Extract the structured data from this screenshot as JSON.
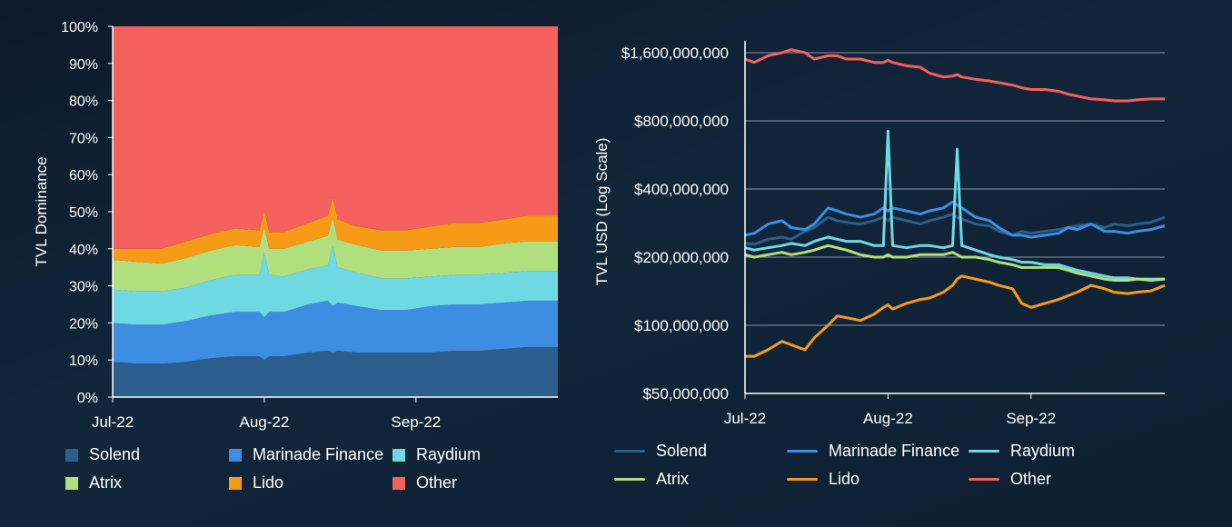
{
  "colors": {
    "Solend": "#2b5e8d",
    "Marinade Finance": "#3d8ee3",
    "Raydium": "#6fd9e3",
    "Atrix": "#b2df7e",
    "Lido": "#f79a16",
    "Other": "#f3605d"
  },
  "chart_data": [
    {
      "type": "area",
      "stacked": true,
      "percent": true,
      "ylabel": "TVL Dominance",
      "xlabel": "",
      "x_ticks": [
        "Jul-22",
        "Aug-22",
        "Sep-22"
      ],
      "x_tick_days": [
        0,
        31,
        62
      ],
      "x_range_days": [
        0,
        91
      ],
      "ylim": [
        0,
        100
      ],
      "y_ticks": [
        "0%",
        "10%",
        "20%",
        "30%",
        "40%",
        "50%",
        "60%",
        "70%",
        "80%",
        "90%",
        "100%"
      ],
      "grid": false,
      "legend_position": "bottom",
      "x_days": [
        0,
        5,
        10,
        15,
        20,
        25,
        30,
        31,
        32,
        35,
        40,
        44,
        45,
        46,
        50,
        55,
        60,
        65,
        70,
        75,
        80,
        85,
        90,
        91
      ],
      "series": [
        {
          "name": "Solend",
          "values": [
            9.5,
            9,
            9,
            9.5,
            10.5,
            11,
            11,
            10,
            11,
            11,
            12,
            12.5,
            12,
            12.5,
            12,
            12,
            12,
            12,
            12.5,
            12.5,
            13,
            13.5,
            13.5,
            13.5
          ]
        },
        {
          "name": "Marinade Finance",
          "values": [
            10.5,
            10.5,
            10.5,
            11,
            11.5,
            12,
            12,
            11.5,
            12,
            12,
            13,
            13.5,
            12.5,
            13,
            12.5,
            11.5,
            11.5,
            12.5,
            12.5,
            12.5,
            12.5,
            12.5,
            12.5,
            12.5
          ]
        },
        {
          "name": "Raydium",
          "values": [
            9,
            9,
            9,
            9,
            9.5,
            10,
            10,
            17.5,
            10,
            9.5,
            9.5,
            9.5,
            16.5,
            9.5,
            9,
            8.5,
            8.5,
            8,
            8,
            8,
            8,
            8,
            8,
            8
          ]
        },
        {
          "name": "Atrix",
          "values": [
            8,
            8,
            7.5,
            8,
            8,
            8,
            7.5,
            7,
            7,
            7.5,
            7.5,
            8,
            7.5,
            7.5,
            7.5,
            7.5,
            7.5,
            7.5,
            7.5,
            7.5,
            8,
            8,
            8,
            8
          ]
        },
        {
          "name": "Lido",
          "values": [
            3,
            3.5,
            4,
            4.5,
            4.5,
            4.5,
            4.5,
            4.5,
            4.5,
            4.5,
            5,
            5.5,
            5.5,
            5.5,
            5,
            5.5,
            5.5,
            6,
            6.5,
            6.5,
            6.5,
            7,
            7,
            7
          ]
        },
        {
          "name": "Other",
          "values": [
            60,
            60,
            60,
            58,
            56,
            54.5,
            55,
            49.5,
            55.5,
            55.5,
            53,
            51,
            46,
            52,
            54,
            55,
            55,
            54,
            53,
            53,
            52,
            51,
            51,
            51
          ]
        }
      ]
    },
    {
      "type": "line",
      "ylabel": "TVL USD (Log Scale)",
      "xlabel": "",
      "y_scale": "log",
      "ylim": [
        50000000,
        1800000000
      ],
      "y_ticks": [
        50000000,
        100000000,
        200000000,
        400000000,
        800000000,
        1600000000
      ],
      "y_tick_labels": [
        "$50,000,000",
        "$100,000,000",
        "$200,000,000",
        "$400,000,000",
        "$800,000,000",
        "$1,600,000,000"
      ],
      "x_ticks": [
        "Jul-22",
        "Aug-22",
        "Sep-22"
      ],
      "x_tick_days": [
        0,
        31,
        62
      ],
      "x_range_days": [
        0,
        91
      ],
      "grid": true,
      "legend_position": "bottom",
      "x_days": [
        0,
        2,
        5,
        8,
        10,
        13,
        15,
        18,
        20,
        22,
        25,
        28,
        30,
        31,
        32,
        35,
        38,
        40,
        43,
        45,
        46,
        47,
        50,
        53,
        55,
        58,
        60,
        62,
        65,
        68,
        70,
        72,
        75,
        78,
        80,
        83,
        85,
        88,
        91
      ],
      "series": [
        {
          "name": "Solend",
          "values": [
            230,
            228,
            240,
            245,
            240,
            260,
            270,
            300,
            290,
            285,
            280,
            290,
            300,
            290,
            300,
            290,
            280,
            290,
            300,
            310,
            300,
            295,
            280,
            275,
            260,
            250,
            260,
            255,
            260,
            265,
            270,
            275,
            280,
            270,
            280,
            275,
            280,
            285,
            300
          ]
        },
        {
          "name": "Marinade Finance",
          "values": [
            250,
            255,
            280,
            290,
            270,
            265,
            280,
            330,
            320,
            310,
            300,
            310,
            330,
            320,
            330,
            320,
            310,
            320,
            330,
            350,
            340,
            330,
            300,
            290,
            270,
            250,
            250,
            245,
            250,
            255,
            270,
            265,
            280,
            260,
            260,
            255,
            260,
            265,
            275
          ]
        },
        {
          "name": "Raydium",
          "values": [
            220,
            215,
            220,
            225,
            230,
            225,
            235,
            245,
            240,
            235,
            235,
            225,
            225,
            720,
            225,
            220,
            225,
            225,
            220,
            225,
            600,
            225,
            215,
            205,
            200,
            195,
            190,
            190,
            185,
            185,
            180,
            175,
            170,
            165,
            162,
            162,
            160,
            160,
            160
          ]
        },
        {
          "name": "Atrix",
          "values": [
            205,
            200,
            205,
            210,
            205,
            210,
            215,
            225,
            220,
            215,
            205,
            200,
            200,
            205,
            200,
            200,
            205,
            205,
            205,
            210,
            205,
            200,
            200,
            195,
            190,
            185,
            180,
            180,
            180,
            180,
            175,
            170,
            165,
            160,
            158,
            158,
            160,
            158,
            160
          ]
        },
        {
          "name": "Lido",
          "values": [
            73,
            73,
            78,
            85,
            82,
            78,
            88,
            100,
            110,
            108,
            105,
            112,
            120,
            123,
            118,
            125,
            130,
            132,
            140,
            150,
            160,
            165,
            160,
            155,
            150,
            145,
            125,
            120,
            125,
            130,
            135,
            140,
            150,
            145,
            140,
            138,
            140,
            142,
            150
          ]
        },
        {
          "name": "Other",
          "values": [
            1500,
            1450,
            1550,
            1600,
            1650,
            1600,
            1500,
            1550,
            1550,
            1500,
            1500,
            1450,
            1450,
            1480,
            1450,
            1400,
            1380,
            1300,
            1250,
            1260,
            1280,
            1250,
            1220,
            1200,
            1180,
            1150,
            1120,
            1100,
            1100,
            1080,
            1050,
            1030,
            1000,
            990,
            980,
            980,
            990,
            1000,
            1000
          ]
        }
      ]
    }
  ],
  "legend_left": [
    "Solend",
    "Marinade Finance",
    "Raydium",
    "Atrix",
    "Lido",
    "Other"
  ],
  "legend_right": [
    "Solend",
    "Marinade Finance",
    "Raydium",
    "Atrix",
    "Lido",
    "Other"
  ]
}
